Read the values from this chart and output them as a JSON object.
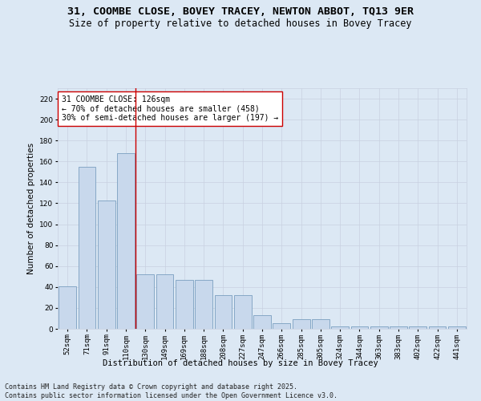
{
  "title": "31, COOMBE CLOSE, BOVEY TRACEY, NEWTON ABBOT, TQ13 9ER",
  "subtitle": "Size of property relative to detached houses in Bovey Tracey",
  "xlabel": "Distribution of detached houses by size in Bovey Tracey",
  "ylabel": "Number of detached properties",
  "bar_values": [
    41,
    155,
    123,
    168,
    52,
    52,
    47,
    47,
    32,
    32,
    13,
    5,
    9,
    9,
    2,
    2,
    2,
    2,
    2,
    2,
    2
  ],
  "categories": [
    "52sqm",
    "71sqm",
    "91sqm",
    "110sqm",
    "130sqm",
    "149sqm",
    "169sqm",
    "188sqm",
    "208sqm",
    "227sqm",
    "247sqm",
    "266sqm",
    "285sqm",
    "305sqm",
    "324sqm",
    "344sqm",
    "363sqm",
    "383sqm",
    "402sqm",
    "422sqm",
    "441sqm"
  ],
  "bar_color": "#c8d8ec",
  "bar_edge_color": "#7a9fc0",
  "vline_x": 3.5,
  "vline_color": "#cc0000",
  "annotation_text": "31 COOMBE CLOSE: 126sqm\n← 70% of detached houses are smaller (458)\n30% of semi-detached houses are larger (197) →",
  "annotation_box_color": "#ffffff",
  "annotation_box_edge_color": "#cc0000",
  "ylim": [
    0,
    230
  ],
  "yticks": [
    0,
    20,
    40,
    60,
    80,
    100,
    120,
    140,
    160,
    180,
    200,
    220
  ],
  "grid_color": "#c8d0e0",
  "background_color": "#dce8f4",
  "footer": "Contains HM Land Registry data © Crown copyright and database right 2025.\nContains public sector information licensed under the Open Government Licence v3.0.",
  "title_fontsize": 9.5,
  "subtitle_fontsize": 8.5,
  "axis_label_fontsize": 7.5,
  "tick_fontsize": 6.5,
  "annotation_fontsize": 7,
  "footer_fontsize": 6
}
